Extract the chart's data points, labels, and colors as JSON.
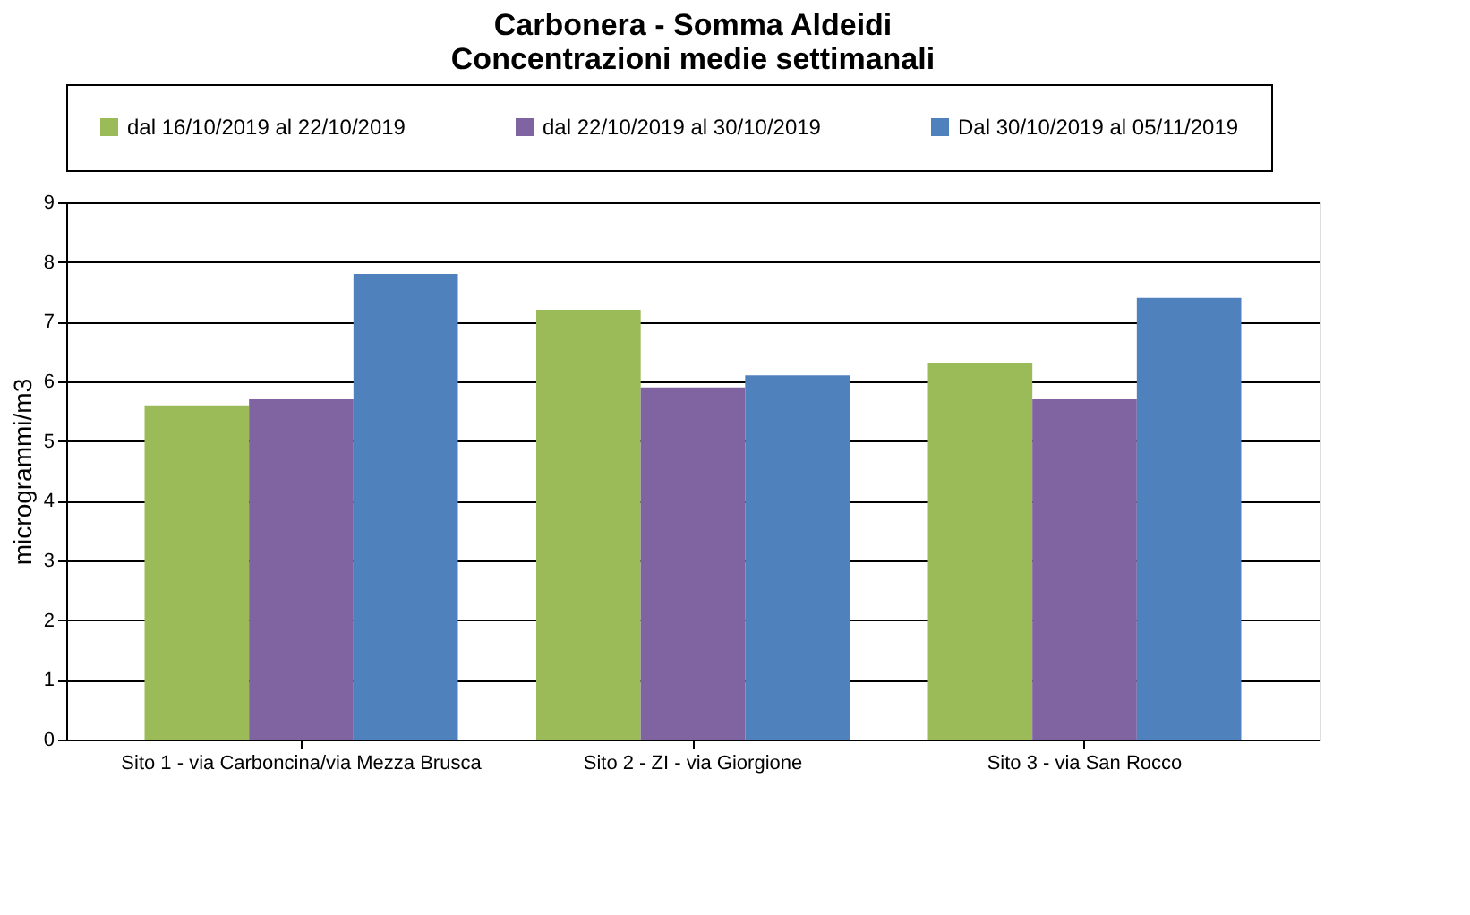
{
  "chart_data": {
    "type": "bar",
    "title": "Carbonera -  Somma Aldeidi\nConcentrazioni medie settimanali",
    "ylabel": "microgrammi/m3",
    "categories": [
      "Sito 1 - via Carboncina/via Mezza Brusca",
      "Sito 2 - ZI - via Giorgione",
      "Sito 3 - via San Rocco"
    ],
    "series": [
      {
        "name": "dal 16/10/2019 al 22/10/2019",
        "color": "#9bbb59",
        "values": [
          5.6,
          7.2,
          6.3
        ]
      },
      {
        "name": "dal 22/10/2019 al 30/10/2019",
        "color": "#8064a2",
        "values": [
          5.7,
          5.9,
          5.7
        ]
      },
      {
        "name": "Dal 30/10/2019 al 05/11/2019",
        "color": "#4f81bd",
        "values": [
          7.8,
          6.1,
          7.4
        ]
      }
    ],
    "ylim": [
      0,
      9
    ],
    "yticks": [
      0,
      1,
      2,
      3,
      4,
      5,
      6,
      7,
      8,
      9
    ],
    "grid": "y",
    "legend": "top"
  }
}
